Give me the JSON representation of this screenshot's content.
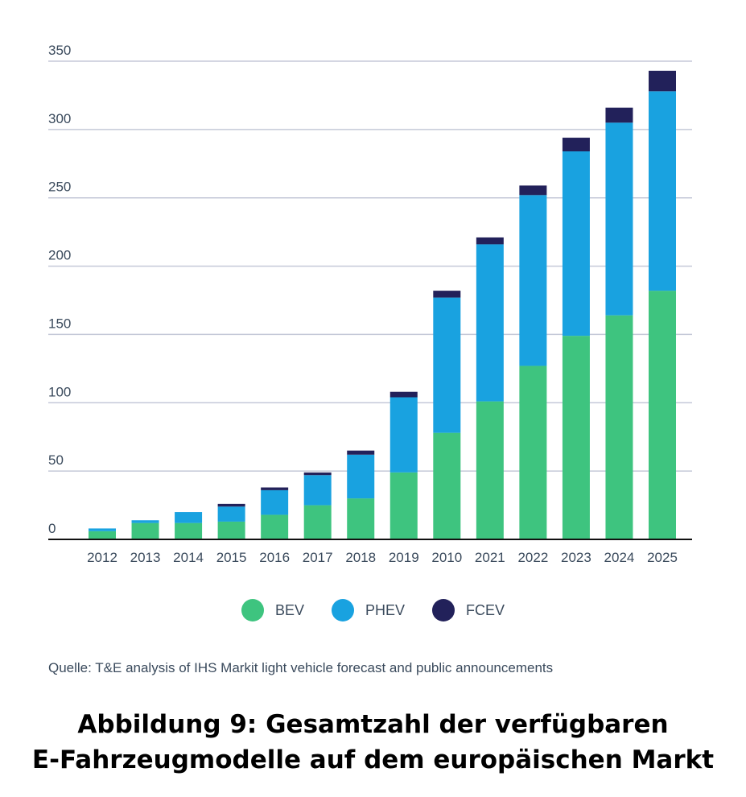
{
  "chart_data": {
    "type": "bar",
    "stacked": true,
    "categories": [
      "2012",
      "2013",
      "2014",
      "2015",
      "2016",
      "2017",
      "2018",
      "2019",
      "2010",
      "2021",
      "2022",
      "2023",
      "2024",
      "2025"
    ],
    "series": [
      {
        "name": "BEV",
        "color": "#3ec47f",
        "values": [
          6,
          12,
          12,
          13,
          18,
          25,
          30,
          49,
          78,
          101,
          127,
          149,
          164,
          182
        ]
      },
      {
        "name": "PHEV",
        "color": "#19a2e0",
        "values": [
          2,
          2,
          8,
          11,
          18,
          22,
          32,
          55,
          99,
          115,
          125,
          135,
          141,
          146
        ]
      },
      {
        "name": "FCEV",
        "color": "#22215a",
        "values": [
          0,
          0,
          0,
          2,
          2,
          2,
          3,
          4,
          5,
          5,
          7,
          10,
          11,
          15
        ]
      }
    ],
    "ylim": [
      0,
      350
    ],
    "yticks": [
      0,
      50,
      100,
      150,
      200,
      250,
      300,
      350
    ],
    "grid": true,
    "legend": "bottom"
  },
  "source": "Quelle: T&E analysis of IHS Markit light vehicle forecast and public announcements",
  "title_line1": "Abbildung 9: Gesamtzahl der verfügbaren",
  "title_line2": "E-Fahrzeugmodelle auf dem europäischen Markt"
}
